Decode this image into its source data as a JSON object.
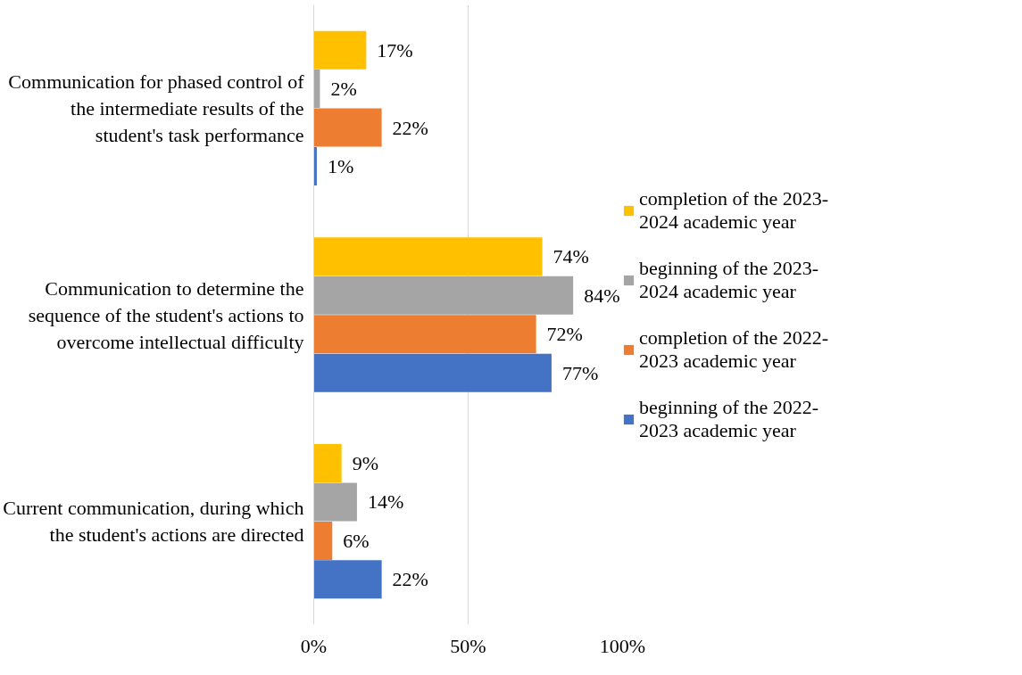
{
  "chart_data": {
    "type": "bar",
    "orientation": "horizontal",
    "categories": [
      "Communication for phased control of the intermediate results of the student's task performance",
      "Communication to determine the sequence of the student's actions to overcome intellectual difficulty",
      "Current communication, during which the student's actions are directed"
    ],
    "series": [
      {
        "name": "completion of the 2023-2024 academic year",
        "color": "#ffc000",
        "values": [
          17,
          74,
          9
        ],
        "value_labels": [
          "17%",
          "74%",
          "9%"
        ]
      },
      {
        "name": "beginning of the 2023-2024 academic year",
        "color": "#a5a5a5",
        "values": [
          2,
          84,
          14
        ],
        "value_labels": [
          "2%",
          "84%",
          "14%"
        ]
      },
      {
        "name": "completion of the 2022-2023 academic year",
        "color": "#ed7d31",
        "values": [
          22,
          72,
          6
        ],
        "value_labels": [
          "22%",
          "72%",
          "6%"
        ]
      },
      {
        "name": "beginning of the 2022-2023 academic year",
        "color": "#4472c4",
        "values": [
          1,
          77,
          22
        ],
        "value_labels": [
          "1%",
          "77%",
          "22%"
        ]
      }
    ],
    "xlim": [
      0,
      100
    ],
    "xticks": [
      {
        "value": 0,
        "label": "0%"
      },
      {
        "value": 50,
        "label": "50%"
      },
      {
        "value": 100,
        "label": "100%"
      }
    ],
    "grid": "x",
    "legend": "right"
  }
}
